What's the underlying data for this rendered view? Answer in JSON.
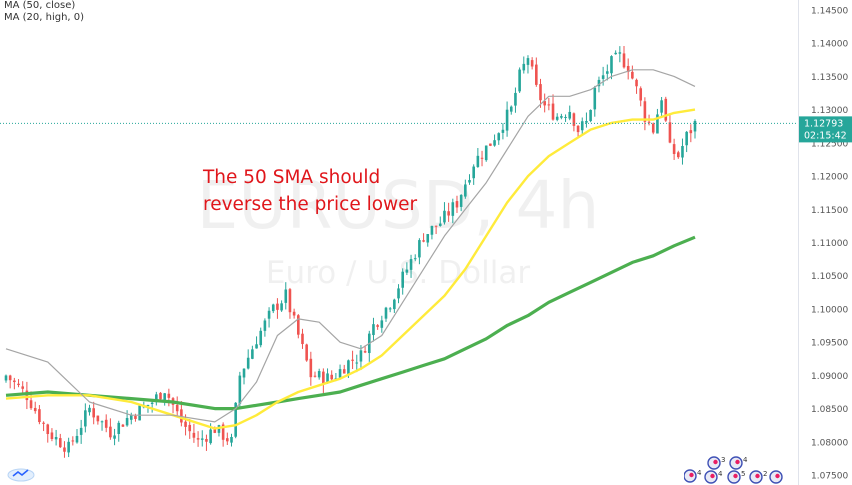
{
  "legend": {
    "ma50": "MA (50, close)",
    "ma20": "MA (20, high, 0)"
  },
  "watermark": {
    "symbol": "EURUSD, 4h",
    "name": "Euro / U.S. Dollar"
  },
  "annotation": {
    "line1": "The 50 SMA should",
    "line2": "reverse the price lower"
  },
  "price_scale": {
    "ticks": [
      "1.14500",
      "1.14000",
      "1.13500",
      "1.13000",
      "1.12500",
      "1.12000",
      "1.11500",
      "1.11000",
      "1.10500",
      "1.10000",
      "1.09500",
      "1.09000",
      "1.08500",
      "1.08000",
      "1.07500"
    ],
    "last_price": "1.12793",
    "countdown": "02:15:42"
  },
  "events": {
    "labels": [
      "3",
      "4",
      "4",
      "4",
      "5",
      "2"
    ]
  },
  "colors": {
    "up": "#26a69a",
    "down": "#ef5350",
    "ma20": "#a5a5a5",
    "ma50": "#ffeb3b",
    "ma100": "#4caf50",
    "annotation": "#e0161b",
    "last_price_bg": "#26a69a"
  },
  "chart_data": {
    "type": "candlestick",
    "ylim": [
      1.0735,
      1.1465
    ],
    "ticks": [
      1.145,
      1.14,
      1.135,
      1.13,
      1.125,
      1.12,
      1.115,
      1.11,
      1.105,
      1.1,
      1.095,
      1.09,
      1.085,
      1.08,
      1.075
    ],
    "anchors": [
      [
        0,
        1.09
      ],
      [
        5,
        1.087
      ],
      [
        10,
        1.0815
      ],
      [
        15,
        1.079
      ],
      [
        20,
        1.085
      ],
      [
        25,
        1.0815
      ],
      [
        30,
        1.084
      ],
      [
        35,
        1.086
      ],
      [
        38,
        1.088
      ],
      [
        42,
        1.083
      ],
      [
        46,
        1.08
      ],
      [
        50,
        1.082
      ],
      [
        54,
        1.08
      ],
      [
        56,
        1.09
      ],
      [
        60,
        1.0955
      ],
      [
        64,
        1.1
      ],
      [
        67,
        1.102
      ],
      [
        70,
        1.096
      ],
      [
        73,
        1.09
      ],
      [
        78,
        1.0895
      ],
      [
        82,
        1.092
      ],
      [
        85,
        1.093
      ],
      [
        88,
        1.0975
      ],
      [
        92,
        1.101
      ],
      [
        96,
        1.106
      ],
      [
        100,
        1.111
      ],
      [
        104,
        1.113
      ],
      [
        108,
        1.116
      ],
      [
        112,
        1.122
      ],
      [
        116,
        1.125
      ],
      [
        119,
        1.128
      ],
      [
        121,
        1.13
      ],
      [
        123,
        1.135
      ],
      [
        125,
        1.138
      ],
      [
        127,
        1.133
      ],
      [
        129,
        1.1305
      ],
      [
        132,
        1.129
      ],
      [
        135,
        1.13
      ],
      [
        137,
        1.127
      ],
      [
        139,
        1.128
      ],
      [
        141,
        1.133
      ],
      [
        143,
        1.135
      ],
      [
        145,
        1.137
      ],
      [
        147,
        1.138
      ],
      [
        149,
        1.1365
      ],
      [
        151,
        1.133
      ],
      [
        153,
        1.129
      ],
      [
        155,
        1.127
      ],
      [
        157,
        1.132
      ],
      [
        159,
        1.124
      ],
      [
        161,
        1.123
      ],
      [
        163,
        1.126
      ],
      [
        165,
        1.1279
      ]
    ],
    "ma20": [
      [
        0,
        1.094
      ],
      [
        10,
        1.092
      ],
      [
        20,
        1.086
      ],
      [
        30,
        1.084
      ],
      [
        40,
        1.084
      ],
      [
        50,
        1.083
      ],
      [
        55,
        1.085
      ],
      [
        60,
        1.089
      ],
      [
        65,
        1.096
      ],
      [
        70,
        1.0985
      ],
      [
        75,
        1.098
      ],
      [
        80,
        1.095
      ],
      [
        85,
        1.094
      ],
      [
        90,
        1.096
      ],
      [
        95,
        1.101
      ],
      [
        100,
        1.106
      ],
      [
        105,
        1.111
      ],
      [
        110,
        1.115
      ],
      [
        115,
        1.119
      ],
      [
        120,
        1.124
      ],
      [
        125,
        1.129
      ],
      [
        130,
        1.132
      ],
      [
        135,
        1.132
      ],
      [
        140,
        1.133
      ],
      [
        145,
        1.135
      ],
      [
        150,
        1.136
      ],
      [
        155,
        1.136
      ],
      [
        160,
        1.135
      ],
      [
        165,
        1.1335
      ]
    ],
    "ma50": [
      [
        0,
        1.0865
      ],
      [
        10,
        1.087
      ],
      [
        20,
        1.087
      ],
      [
        30,
        1.086
      ],
      [
        40,
        1.084
      ],
      [
        50,
        1.082
      ],
      [
        55,
        1.0825
      ],
      [
        60,
        1.084
      ],
      [
        65,
        1.086
      ],
      [
        70,
        1.0875
      ],
      [
        75,
        1.0885
      ],
      [
        80,
        1.0895
      ],
      [
        85,
        1.091
      ],
      [
        90,
        1.093
      ],
      [
        95,
        1.096
      ],
      [
        100,
        1.099
      ],
      [
        105,
        1.102
      ],
      [
        110,
        1.106
      ],
      [
        115,
        1.111
      ],
      [
        120,
        1.116
      ],
      [
        125,
        1.12
      ],
      [
        130,
        1.123
      ],
      [
        135,
        1.125
      ],
      [
        140,
        1.127
      ],
      [
        145,
        1.128
      ],
      [
        150,
        1.1285
      ],
      [
        155,
        1.1285
      ],
      [
        160,
        1.1295
      ],
      [
        165,
        1.13
      ]
    ],
    "ma100": [
      [
        0,
        1.087
      ],
      [
        10,
        1.0875
      ],
      [
        20,
        1.087
      ],
      [
        30,
        1.0865
      ],
      [
        40,
        1.086
      ],
      [
        50,
        1.085
      ],
      [
        55,
        1.085
      ],
      [
        60,
        1.0855
      ],
      [
        65,
        1.086
      ],
      [
        70,
        1.0865
      ],
      [
        75,
        1.087
      ],
      [
        80,
        1.0875
      ],
      [
        85,
        1.0885
      ],
      [
        90,
        1.0895
      ],
      [
        95,
        1.0905
      ],
      [
        100,
        1.0915
      ],
      [
        105,
        1.0925
      ],
      [
        110,
        1.094
      ],
      [
        115,
        1.0955
      ],
      [
        120,
        1.0975
      ],
      [
        125,
        1.099
      ],
      [
        130,
        1.101
      ],
      [
        135,
        1.1025
      ],
      [
        140,
        1.104
      ],
      [
        145,
        1.1055
      ],
      [
        150,
        1.107
      ],
      [
        155,
        1.108
      ],
      [
        160,
        1.1095
      ],
      [
        165,
        1.1108
      ]
    ]
  }
}
